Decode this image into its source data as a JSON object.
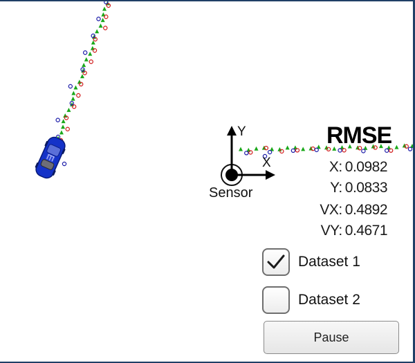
{
  "sensor": {
    "label": "Sensor",
    "axis_x_label": "X",
    "axis_y_label": "Y"
  },
  "rmse": {
    "title": "RMSE",
    "rows": [
      {
        "label": "X:",
        "value": "0.0982"
      },
      {
        "label": "Y:",
        "value": "0.0833"
      },
      {
        "label": "VX:",
        "value": "0.4892"
      },
      {
        "label": "VY:",
        "value": "0.4671"
      }
    ]
  },
  "datasets": [
    {
      "label": "Dataset 1",
      "checked": true
    },
    {
      "label": "Dataset 2",
      "checked": false
    }
  ],
  "controls": {
    "pause_label": "Pause"
  },
  "legend_colors": {
    "lidar": "#d01818",
    "radar": "#1a1aa8",
    "estimate": "#1aa81a",
    "car": "#1432c8"
  }
}
